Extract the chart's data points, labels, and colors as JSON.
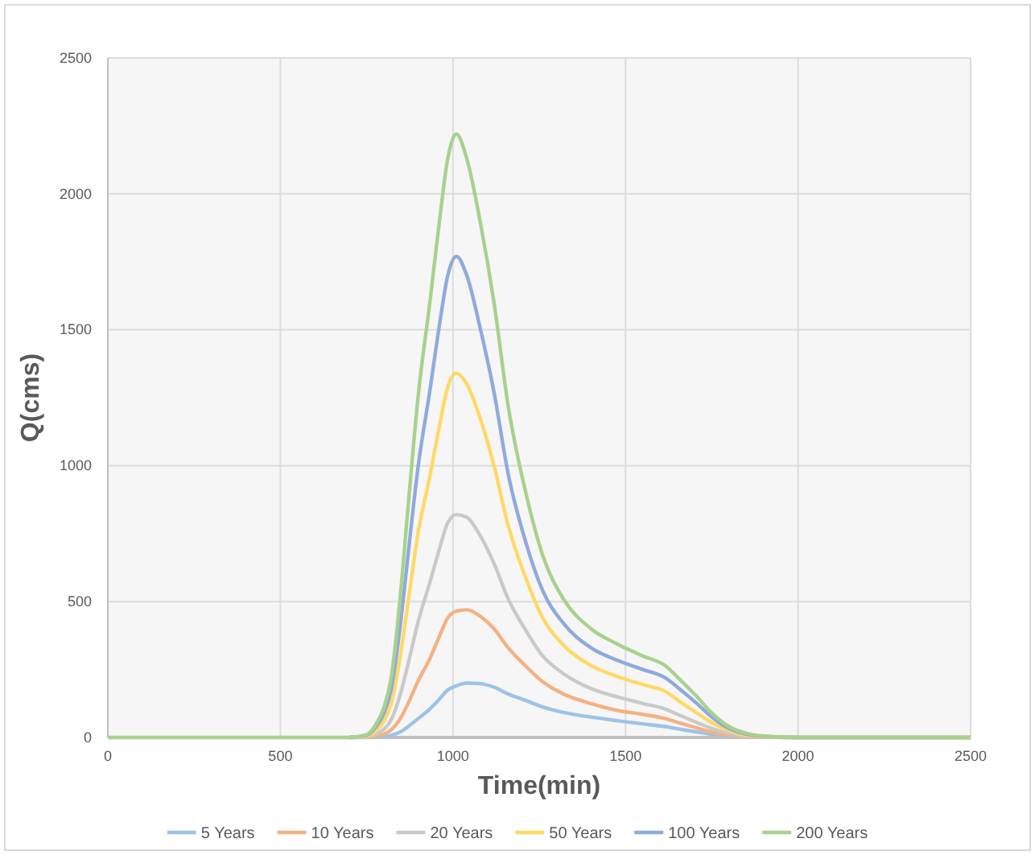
{
  "chart_data": {
    "type": "line",
    "xlabel": "Time(min)",
    "ylabel": "Q(cms)",
    "x": [
      0,
      500,
      700,
      750,
      775,
      800,
      821,
      850,
      868,
      900,
      933,
      960,
      985,
      1010,
      1040,
      1080,
      1119,
      1160,
      1213,
      1260,
      1320,
      1400,
      1474,
      1550,
      1614,
      1660,
      1707,
      1750,
      1800,
      1850,
      1900,
      2000,
      2500
    ],
    "xlim": [
      0,
      2500
    ],
    "xticks": [
      0,
      500,
      1000,
      1500,
      2000,
      2500
    ],
    "ylim": [
      0,
      2500
    ],
    "yticks": [
      0,
      500,
      1000,
      1500,
      2000,
      2500
    ],
    "grid": true,
    "legend": "bottom",
    "marker": "none",
    "line_style": "solid",
    "series": [
      {
        "name": "5 Years",
        "color": "#9dc3e6",
        "values": [
          null,
          null,
          0,
          0,
          1,
          3,
          8,
          22,
          38,
          70,
          105,
          140,
          175,
          190,
          200,
          198,
          185,
          160,
          135,
          112,
          92,
          75,
          62,
          50,
          40,
          30,
          20,
          12,
          5,
          2,
          1,
          0,
          0
        ]
      },
      {
        "name": "10 Years",
        "color": "#f4b183",
        "values": [
          null,
          null,
          0,
          1,
          5,
          12,
          28,
          75,
          120,
          210,
          290,
          370,
          440,
          465,
          470,
          445,
          400,
          330,
          260,
          205,
          160,
          125,
          100,
          85,
          70,
          52,
          35,
          20,
          9,
          3,
          1,
          0,
          0
        ]
      },
      {
        "name": "20 Years",
        "color": "#c9c9c9",
        "values": [
          null,
          null,
          0,
          3,
          12,
          30,
          65,
          170,
          260,
          430,
          570,
          690,
          790,
          820,
          810,
          740,
          640,
          510,
          390,
          300,
          235,
          180,
          150,
          125,
          105,
          80,
          55,
          33,
          15,
          5,
          2,
          0,
          0
        ]
      },
      {
        "name": "50 Years",
        "color": "#ffd966",
        "values": [
          null,
          null,
          0,
          5,
          22,
          60,
          125,
          320,
          480,
          760,
          960,
          1140,
          1290,
          1340,
          1300,
          1170,
          1000,
          780,
          580,
          440,
          340,
          265,
          225,
          195,
          170,
          130,
          90,
          55,
          25,
          9,
          3,
          0,
          0
        ]
      },
      {
        "name": "100 Years",
        "color": "#8faadc",
        "values": [
          null,
          null,
          0,
          8,
          36,
          88,
          176,
          440,
          650,
          1005,
          1275,
          1510,
          1700,
          1770,
          1700,
          1500,
          1270,
          970,
          710,
          540,
          420,
          330,
          285,
          250,
          220,
          175,
          125,
          75,
          33,
          12,
          4,
          0,
          0
        ]
      },
      {
        "name": "200 Years",
        "color": "#a9d18e",
        "values": [
          0,
          0,
          0,
          10,
          45,
          110,
          220,
          555,
          820,
          1265,
          1600,
          1890,
          2130,
          2220,
          2130,
          1890,
          1600,
          1220,
          890,
          670,
          510,
          400,
          345,
          300,
          265,
          210,
          150,
          90,
          40,
          15,
          5,
          0,
          0
        ]
      }
    ]
  }
}
